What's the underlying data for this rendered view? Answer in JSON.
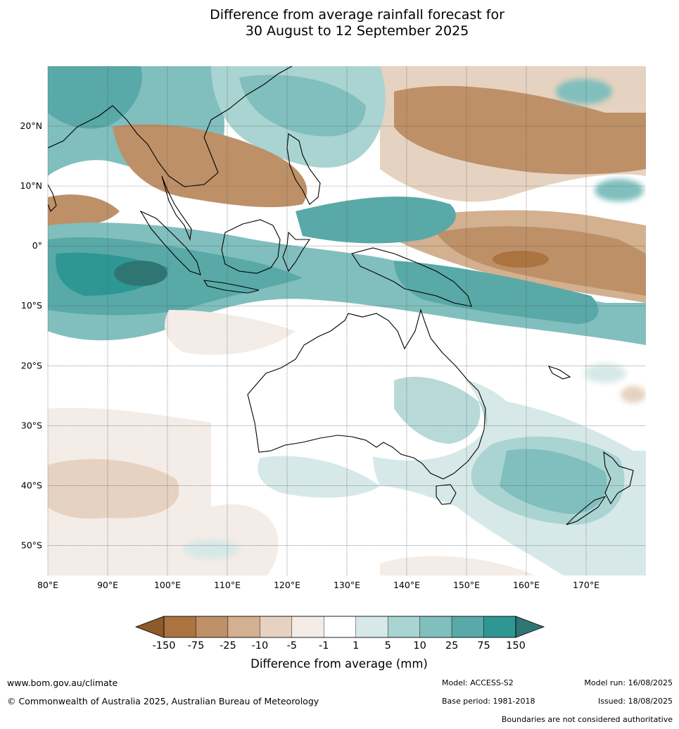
{
  "title": {
    "line1": "Difference from average rainfall forecast for",
    "line2": "30 August to 12 September 2025"
  },
  "map": {
    "lon_range": [
      80,
      180
    ],
    "lat_range": [
      -55,
      30
    ],
    "lat_labels": [
      "20°N",
      "10°N",
      "0°",
      "10°S",
      "20°S",
      "30°S",
      "40°S",
      "50°S"
    ],
    "lon_labels": [
      "80°E",
      "90°E",
      "100°E",
      "110°E",
      "120°E",
      "130°E",
      "140°E",
      "150°E",
      "160°E",
      "170°E"
    ],
    "grid": true
  },
  "legend": {
    "bounds": [
      "-150",
      "-75",
      "-25",
      "-10",
      "-5",
      "-1",
      "1",
      "5",
      "10",
      "25",
      "75",
      "150"
    ],
    "colors": [
      "#8c5a2b",
      "#ab7340",
      "#be9068",
      "#d3b08f",
      "#e6d2c0",
      "#f4ece6",
      "#ffffff",
      "#d6e9e8",
      "#aad4d2",
      "#80bfbd",
      "#58a9a7",
      "#2e9794",
      "#2f7573"
    ],
    "label": "Difference from average (mm)",
    "extend": "both"
  },
  "footer": {
    "url": "www.bom.gov.au/climate",
    "copyright": "© Commonwealth of Australia 2025, Australian Bureau of Meteorology",
    "model": "Model: ACCESS-S2",
    "base_period": "Base period: 1981-2018",
    "model_run": "Model run: 16/08/2025",
    "issued": "Issued: 18/08/2025",
    "boundaries_note": "Boundaries are not considered authoritative"
  }
}
